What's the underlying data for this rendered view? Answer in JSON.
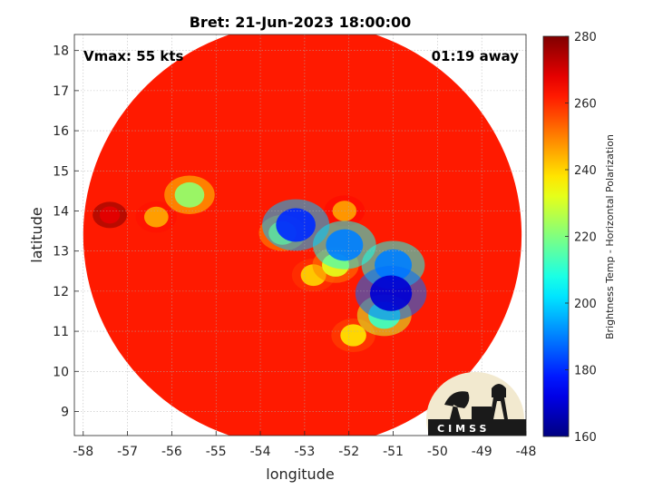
{
  "chart_data": {
    "type": "heatmap",
    "title": "Bret: 21-Jun-2023 18:00:00",
    "xlabel": "longitude",
    "ylabel": "latitude",
    "xlim": [
      -58.2,
      -48
    ],
    "ylim": [
      8.4,
      18.4
    ],
    "xticks": [
      -58,
      -57,
      -56,
      -55,
      -54,
      -53,
      -52,
      -51,
      -50,
      -49,
      -48
    ],
    "yticks": [
      9,
      10,
      11,
      12,
      13,
      14,
      15,
      16,
      17,
      18
    ],
    "grid": true,
    "colorbar": {
      "label": "Brightness Temp - Horizontal Polarization",
      "min": 160,
      "max": 280,
      "ticks": [
        160,
        180,
        200,
        220,
        240,
        260,
        280
      ],
      "colormap": "jet",
      "position": "right"
    },
    "swath": {
      "center_lon": -53.05,
      "center_lat": 13.4,
      "radius_lon": 4.95,
      "radius_lat": 5.3,
      "background_value": 262
    },
    "features": [
      {
        "lon": -55.6,
        "lat": 14.4,
        "value": 222
      },
      {
        "lon": -56.35,
        "lat": 13.85,
        "value": 245
      },
      {
        "lon": -53.2,
        "lat": 13.65,
        "value": 180
      },
      {
        "lon": -53.5,
        "lat": 13.45,
        "value": 230
      },
      {
        "lon": -52.1,
        "lat": 13.15,
        "value": 190
      },
      {
        "lon": -52.3,
        "lat": 12.65,
        "value": 232
      },
      {
        "lon": -51.0,
        "lat": 12.65,
        "value": 190
      },
      {
        "lon": -51.05,
        "lat": 11.95,
        "value": 170
      },
      {
        "lon": -51.2,
        "lat": 11.4,
        "value": 212
      },
      {
        "lon": -52.1,
        "lat": 14.0,
        "value": 246
      },
      {
        "lon": -52.8,
        "lat": 12.4,
        "value": 240
      },
      {
        "lon": -51.9,
        "lat": 10.9,
        "value": 238
      },
      {
        "lon": -57.4,
        "lat": 13.9,
        "value": 268
      }
    ],
    "annotations": {
      "vmax": "Vmax: 55 kts",
      "time_offset": "01:19 away"
    }
  },
  "logo": {
    "text": "CIMSS",
    "colors": {
      "background": "#f2e9cf",
      "ink": "#1a1a1a"
    }
  }
}
